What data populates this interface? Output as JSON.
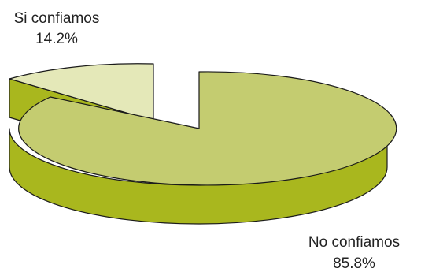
{
  "chart_data": {
    "type": "pie",
    "style": "3d-exploded",
    "title": "",
    "slices": [
      {
        "label": "Si confiamos",
        "value": 14.2,
        "value_label": "14.2%",
        "color": "#e4e8b8"
      },
      {
        "label": "No confiamos",
        "value": 85.8,
        "value_label": "85.8%",
        "color": "#c4cc70"
      }
    ],
    "side_colors": [
      "#a9b71e",
      "#a9b71e"
    ],
    "legend": "none"
  }
}
